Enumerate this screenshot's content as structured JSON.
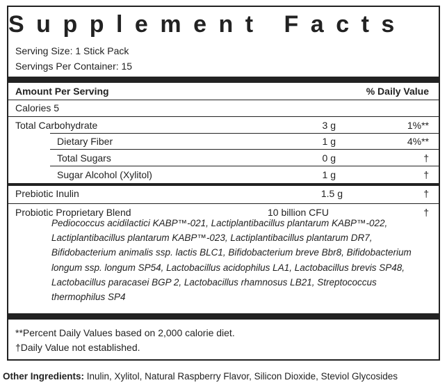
{
  "title": "Supplement Facts",
  "serving_size": "Serving Size: 1 Stick Pack",
  "servings_per_container": "Servings Per Container: 15",
  "header": {
    "amount": "Amount Per Serving",
    "daily_value": "% Daily Value"
  },
  "calories": "Calories 5",
  "rows": [
    {
      "name": "Total Carbohydrate",
      "amount": "3 g",
      "dv": "1%**"
    },
    {
      "name": "Dietary Fiber",
      "amount": "1 g",
      "dv": "4%**"
    },
    {
      "name": "Total Sugars",
      "amount": "0 g",
      "dv": "†"
    },
    {
      "name": "Sugar Alcohol (Xylitol)",
      "amount": "1 g",
      "dv": "†"
    },
    {
      "name": "Prebiotic Inulin",
      "amount": "1.5 g",
      "dv": "†"
    }
  ],
  "blend": {
    "name": "Probiotic Proprietary Blend",
    "amount": "10 billion CFU",
    "dv": "†",
    "ingredients": "Pediococcus acidilactici KABP™-021, Lactiplantibacillus plantarum KABP™-022, Lactiplantibacillus plantarum KABP™-023, Lactiplantibacillus plantarum DR7, Bifidobacterium animalis ssp. lactis BLC1, Bifidobacterium breve Bbr8, Bifidobacterium longum ssp. longum SP54, Lactobacillus acidophilus LA1, Lactobacillus brevis SP48, Lactobacillus paracasei BGP 2, Lactobacillus rhamnosus LB21, Streptococcus thermophilus SP4"
  },
  "footnotes": [
    "**Percent Daily Values based on 2,000 calorie diet.",
    "†Daily Value not established."
  ],
  "other_ingredients": {
    "label": "Other Ingredients:",
    "text": "Inulin, Xylitol, Natural Raspberry Flavor, Silicon Dioxide, Steviol Glycosides"
  }
}
